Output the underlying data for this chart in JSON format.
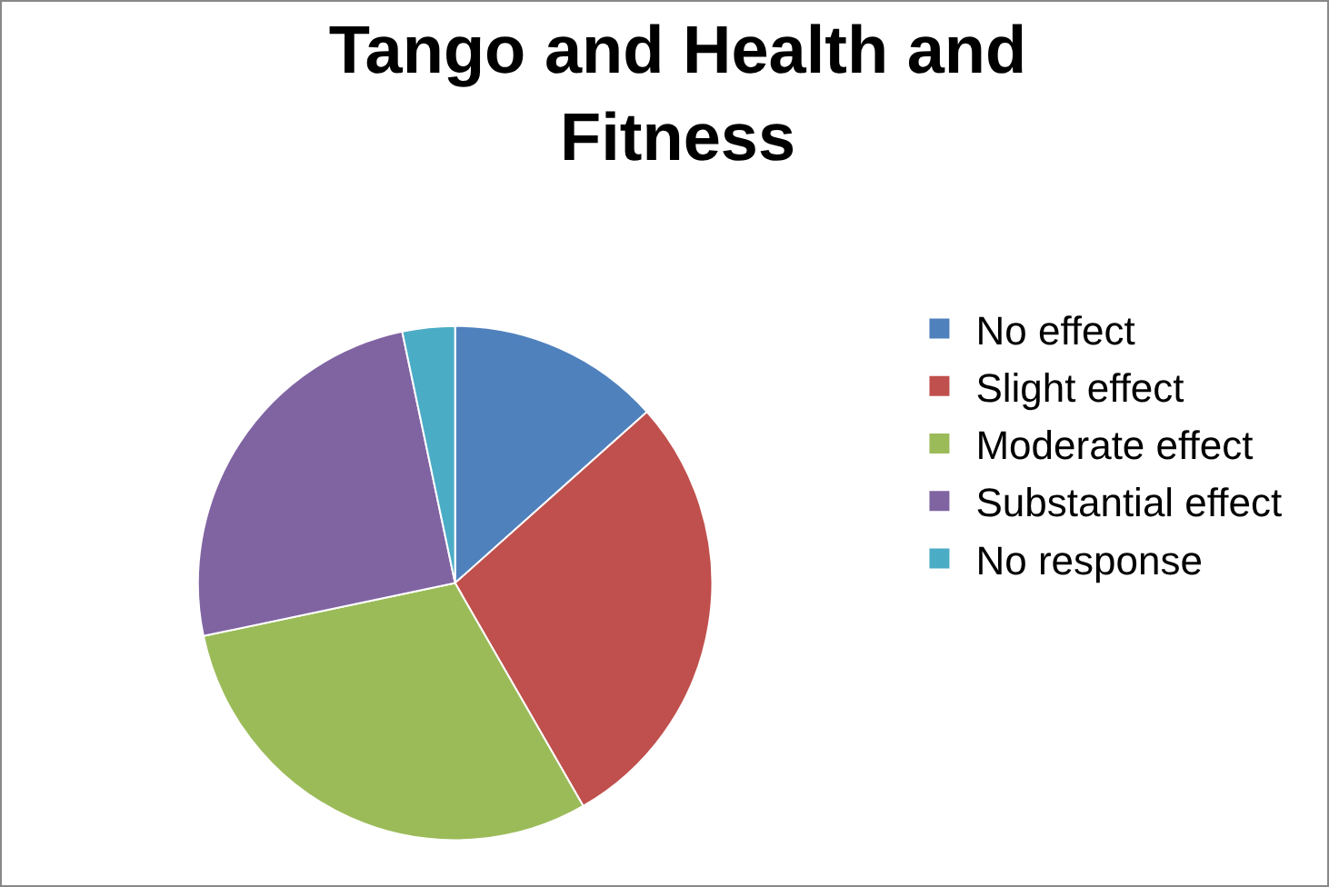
{
  "chart_data": {
    "type": "pie",
    "title": "Tango and Health and Fitness",
    "categories": [
      "No effect",
      "Slight effect",
      "Moderate effect",
      "Substantial effect",
      "No response"
    ],
    "values": [
      13.4,
      28.3,
      30.0,
      25.0,
      3.3
    ],
    "colors": [
      "#4f81bd",
      "#c0504d",
      "#9bbb59",
      "#8064a2",
      "#4bacc6"
    ],
    "legend": "right"
  }
}
